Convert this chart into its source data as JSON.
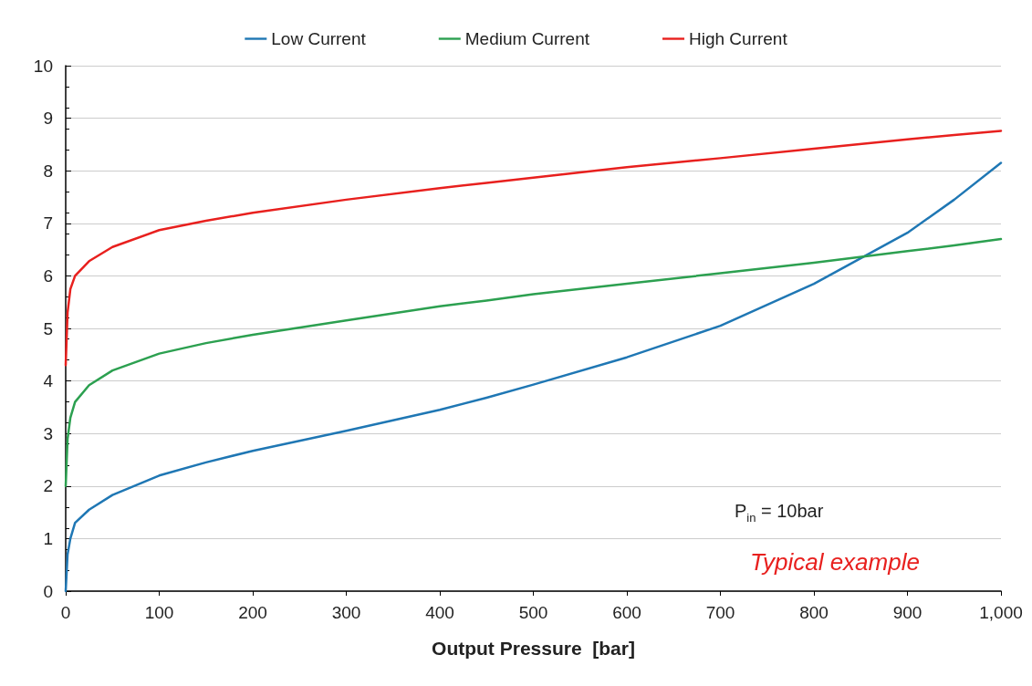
{
  "chart_data": {
    "type": "line",
    "xlabel": "Output Pressure  [bar]",
    "legend": "top",
    "grid": "y",
    "marker": "none",
    "line_style": "solid",
    "xlim": [
      0,
      1000
    ],
    "xticks": [
      0,
      100,
      200,
      300,
      400,
      500,
      600,
      700,
      800,
      900,
      {
        "value": 1000,
        "label": "1,000"
      }
    ],
    "ylim": [
      0,
      10
    ],
    "yticks": [
      0,
      1,
      2,
      3,
      4,
      5,
      6,
      7,
      8,
      9,
      10
    ],
    "x": [
      0,
      2,
      5,
      10,
      25,
      50,
      100,
      150,
      200,
      300,
      400,
      450,
      500,
      600,
      700,
      800,
      900,
      950,
      1000
    ],
    "series": [
      {
        "name": "Low Current",
        "color": "#1f77b4",
        "values": [
          0,
          0.7,
          1.0,
          1.3,
          1.55,
          1.83,
          2.2,
          2.45,
          2.67,
          3.05,
          3.45,
          3.68,
          3.93,
          4.45,
          5.05,
          5.85,
          6.82,
          7.45,
          8.15
        ]
      },
      {
        "name": "Medium Current",
        "color": "#2ca050",
        "values": [
          2.0,
          2.9,
          3.3,
          3.6,
          3.92,
          4.2,
          4.52,
          4.72,
          4.88,
          5.15,
          5.42,
          5.53,
          5.65,
          5.85,
          6.05,
          6.25,
          6.47,
          6.58,
          6.7
        ]
      },
      {
        "name": "High Current",
        "color": "#e8201e",
        "values": [
          4.3,
          5.3,
          5.75,
          6.0,
          6.28,
          6.55,
          6.87,
          7.05,
          7.2,
          7.45,
          7.67,
          7.77,
          7.87,
          8.07,
          8.24,
          8.42,
          8.6,
          8.68,
          8.76
        ]
      }
    ],
    "annotations": [
      "P$_{in}$ = 10bar",
      "Typical example"
    ]
  }
}
